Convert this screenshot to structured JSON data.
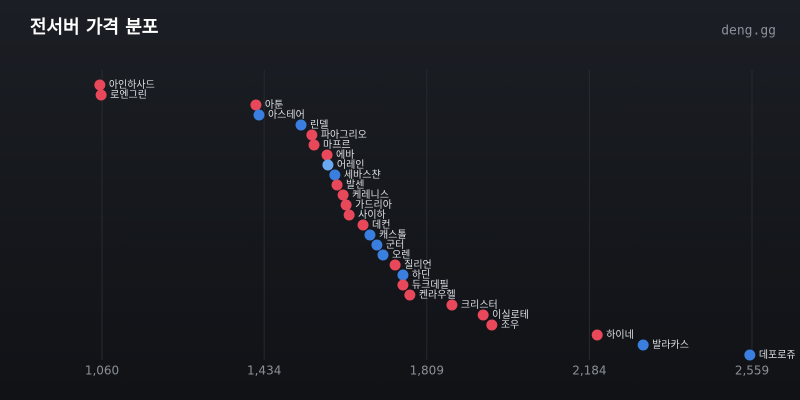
{
  "chart_data": {
    "type": "dot",
    "title": "전서버 가격 분포",
    "source": "deng.gg",
    "categories": [
      "아인하사드",
      "로엔그린",
      "아툰",
      "아스테어",
      "린델",
      "파아그리오",
      "마프르",
      "에바",
      "어레인",
      "세바스챤",
      "발센",
      "케레니스",
      "가드리아",
      "사이하",
      "데컨",
      "캐스톨",
      "군터",
      "오렌",
      "질리언",
      "하딘",
      "듀크데필",
      "켄라우헬",
      "크리스터",
      "이실로테",
      "조우",
      "하이네",
      "발라카스",
      "데포로쥬"
    ],
    "values": [
      1055,
      1058,
      1415,
      1422,
      1519,
      1544,
      1549,
      1579,
      1581,
      1597,
      1602,
      1616,
      1623,
      1630,
      1662,
      1678,
      1694,
      1708,
      1736,
      1754,
      1754,
      1770,
      1867,
      1939,
      1959,
      2202,
      2308,
      2554
    ],
    "colors": [
      "#e8485a",
      "#e8485a",
      "#e8485a",
      "#3a7fe0",
      "#3a7fe0",
      "#e8485a",
      "#e8485a",
      "#e8485a",
      "#6aa8f0",
      "#3a7fe0",
      "#e8485a",
      "#e8485a",
      "#e8485a",
      "#e8485a",
      "#e8485a",
      "#3a7fe0",
      "#3a7fe0",
      "#3a7fe0",
      "#e8485a",
      "#3a7fe0",
      "#e8485a",
      "#e8485a",
      "#e8485a",
      "#e8485a",
      "#e8485a",
      "#e8485a",
      "#3a7fe0",
      "#3a7fe0"
    ],
    "xlim": [
      1060,
      2559
    ],
    "xticks": [
      {
        "value": 1060,
        "label": "1,060"
      },
      {
        "value": 1434,
        "label": "1,434"
      },
      {
        "value": 1809,
        "label": "1,809"
      },
      {
        "value": 2184,
        "label": "2,184"
      },
      {
        "value": 2559,
        "label": "2,559"
      }
    ],
    "grid": true
  }
}
